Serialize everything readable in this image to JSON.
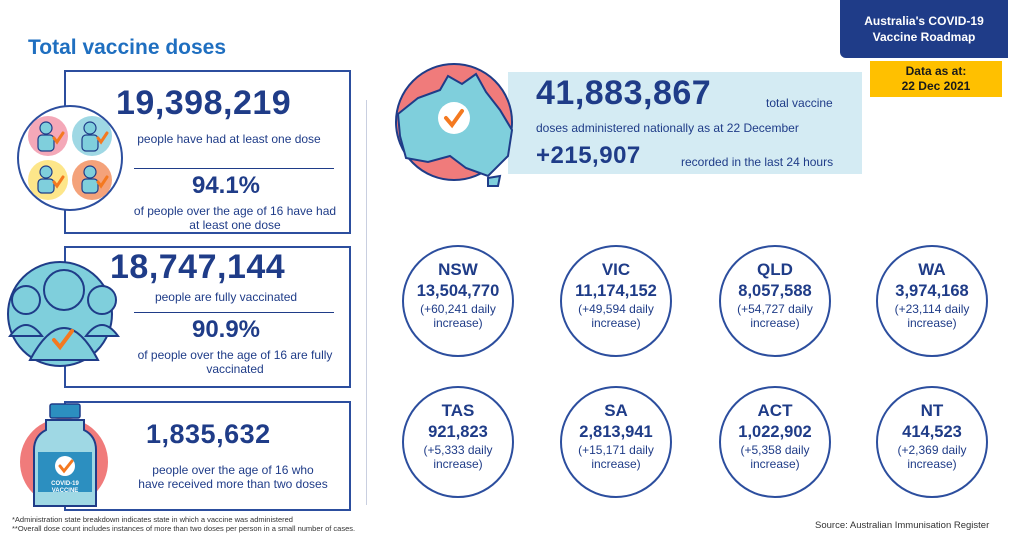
{
  "title": "Total vaccine doses",
  "roadmap": {
    "line1": "Australia's COVID-19",
    "line2": "Vaccine Roadmap"
  },
  "data_as_at": {
    "label": "Data as at:",
    "date": "22 Dec 2021"
  },
  "first_dose": {
    "count": "19,398,219",
    "desc": "people have had at least one dose",
    "pct": "94.1%",
    "pct_desc": "of people over the age of 16 have had at least one dose"
  },
  "fully_vaccinated": {
    "count": "18,747,144",
    "desc": "people are fully vaccinated",
    "pct": "90.9%",
    "pct_desc": "of people over the age of 16 are fully vaccinated"
  },
  "more_than_two": {
    "count": "1,835,632",
    "desc": "people over the age of 16 who have received more than two doses",
    "vial_label": "COVID-19 VACCINE"
  },
  "national": {
    "total": "41,883,867",
    "total_suffix": "total vaccine",
    "desc": "doses administered nationally as at 22 December",
    "daily": "+215,907",
    "daily_desc": "recorded in the last 24 hours"
  },
  "states": [
    {
      "name": "NSW",
      "value": "13,504,770",
      "inc1": "(+60,241 daily",
      "inc2": "increase)"
    },
    {
      "name": "VIC",
      "value": "11,174,152",
      "inc1": "(+49,594 daily",
      "inc2": "increase)"
    },
    {
      "name": "QLD",
      "value": "8,057,588",
      "inc1": "(+54,727 daily",
      "inc2": "increase)"
    },
    {
      "name": "WA",
      "value": "3,974,168",
      "inc1": "(+23,114 daily",
      "inc2": "increase)"
    },
    {
      "name": "TAS",
      "value": "921,823",
      "inc1": "(+5,333 daily",
      "inc2": "increase)"
    },
    {
      "name": "SA",
      "value": "2,813,941",
      "inc1": "(+15,171 daily",
      "inc2": "increase)"
    },
    {
      "name": "ACT",
      "value": "1,022,902",
      "inc1": "(+5,358 daily",
      "inc2": "increase)"
    },
    {
      "name": "NT",
      "value": "414,523",
      "inc1": "(+2,369 daily",
      "inc2": "increase)"
    }
  ],
  "footnotes": {
    "line1": "*Administration state breakdown indicates state in which a vaccine was administered",
    "line2": "**Overall dose count includes instances of more than two doses per person in a small number of cases."
  },
  "source": "Source: Australian Immunisation Register",
  "colors": {
    "navy": "#1f3c88",
    "accent_blue": "#1f6fc0",
    "yellow": "#ffc000",
    "orange": "#f47920",
    "teal": "#7fcfdc",
    "pink": "#f07b7b"
  }
}
